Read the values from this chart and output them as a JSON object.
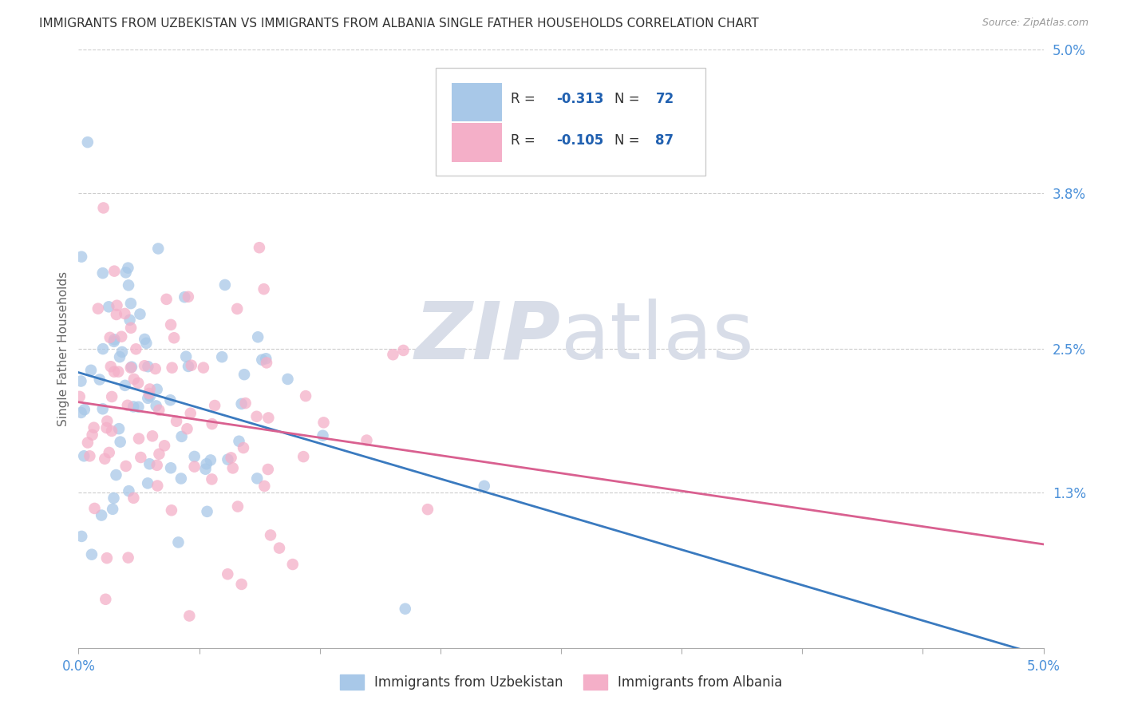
{
  "title": "IMMIGRANTS FROM UZBEKISTAN VS IMMIGRANTS FROM ALBANIA SINGLE FATHER HOUSEHOLDS CORRELATION CHART",
  "source": "Source: ZipAtlas.com",
  "ylabel": "Single Father Households",
  "legend_blue_label": "Immigrants from Uzbekistan",
  "legend_pink_label": "Immigrants from Albania",
  "legend_blue_r_val": "-0.313",
  "legend_blue_n_val": "72",
  "legend_pink_r_val": "-0.105",
  "legend_pink_n_val": "87",
  "blue_color": "#a8c8e8",
  "pink_color": "#f4afc8",
  "blue_line_color": "#3a7abf",
  "pink_line_color": "#d96090",
  "watermark_zip": "ZIP",
  "watermark_atlas": "atlas",
  "title_color": "#333333",
  "r_val_color": "#2060b0",
  "axis_label_color": "#4a90d9",
  "ytick_vals": [
    0.013,
    0.025,
    0.038,
    0.05
  ],
  "ytick_labels": [
    "1.3%",
    "2.5%",
    "3.8%",
    "5.0%"
  ],
  "xlim": [
    0.0,
    0.05
  ],
  "ylim": [
    0.0,
    0.05
  ],
  "figsize": [
    14.06,
    8.92
  ],
  "dpi": 100
}
